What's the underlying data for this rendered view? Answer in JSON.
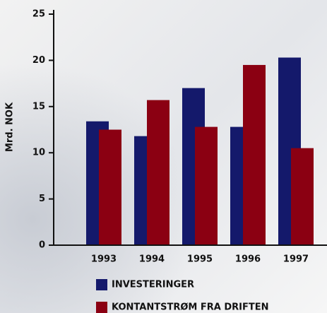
{
  "chart_data": {
    "type": "bar",
    "ylabel": "Mrd. NOK",
    "categories": [
      "1993",
      "1994",
      "1995",
      "1996",
      "1997"
    ],
    "series": [
      {
        "name": "INVESTERINGER",
        "color": "#14196b",
        "values": [
          13.4,
          11.8,
          17.0,
          12.8,
          20.3
        ]
      },
      {
        "name": "KONTANTSTRØM FRA DRIFTEN",
        "color": "#8b0012",
        "values": [
          12.5,
          15.7,
          12.8,
          19.5,
          10.5
        ]
      }
    ],
    "ylim": [
      0,
      25
    ],
    "yticks": [
      0,
      5,
      10,
      15,
      20,
      25
    ],
    "grid": false
  }
}
